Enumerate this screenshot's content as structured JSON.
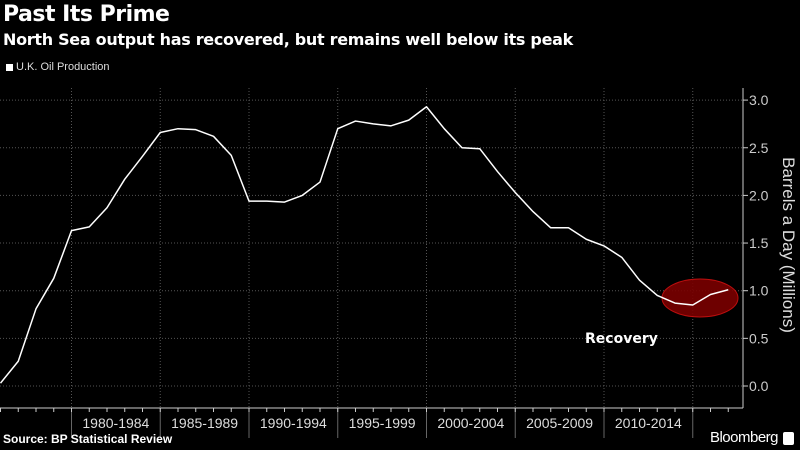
{
  "header": {
    "title": "Past Its Prime",
    "subtitle": "North Sea output has recovered, but remains well below its peak"
  },
  "footer": {
    "source": "Source: BP Statistical Review",
    "brand": "Bloomberg"
  },
  "colors": {
    "background": "#000000",
    "line": "#ffffff",
    "highlight_fill": "#7a0000",
    "highlight_stroke": "#d01010"
  },
  "chart_data": {
    "type": "line",
    "title": "Past Its Prime",
    "subtitle": "North Sea output has recovered, but remains well below its peak",
    "ylabel": "Barrels a Day (Millions)",
    "xlabel": "",
    "ylim": [
      0,
      3.0
    ],
    "yticks": [
      "0.0",
      "0.5",
      "1.0",
      "1.5",
      "2.0",
      "2.5",
      "3.0"
    ],
    "y_axis_side": "right",
    "grid": true,
    "legend": "top-left",
    "x_category_labels": [
      "1980-1984",
      "1985-1989",
      "1990-1994",
      "1995-1999",
      "2000-2004",
      "2005-2009",
      "2010-2014"
    ],
    "series": [
      {
        "name": "U.K. Oil Production",
        "x": [
          1975,
          1976,
          1977,
          1978,
          1979,
          1980,
          1981,
          1982,
          1983,
          1984,
          1985,
          1986,
          1987,
          1988,
          1989,
          1990,
          1991,
          1992,
          1993,
          1994,
          1995,
          1996,
          1997,
          1998,
          1999,
          2000,
          2001,
          2002,
          2003,
          2004,
          2005,
          2006,
          2007,
          2008,
          2009,
          2010,
          2011,
          2012,
          2013,
          2014,
          2015,
          2016
        ],
        "values": [
          0.03,
          0.26,
          0.81,
          1.13,
          1.63,
          1.67,
          1.87,
          2.17,
          2.41,
          2.66,
          2.7,
          2.69,
          2.62,
          2.42,
          1.94,
          1.94,
          1.93,
          2.0,
          2.14,
          2.7,
          2.78,
          2.75,
          2.73,
          2.79,
          2.93,
          2.7,
          2.5,
          2.49,
          2.25,
          2.03,
          1.83,
          1.66,
          1.66,
          1.54,
          1.47,
          1.35,
          1.11,
          0.95,
          0.87,
          0.85,
          0.96,
          1.01
        ]
      }
    ],
    "annotations": [
      {
        "text": "Recovery",
        "x_range": [
          2013,
          2016
        ]
      }
    ]
  }
}
